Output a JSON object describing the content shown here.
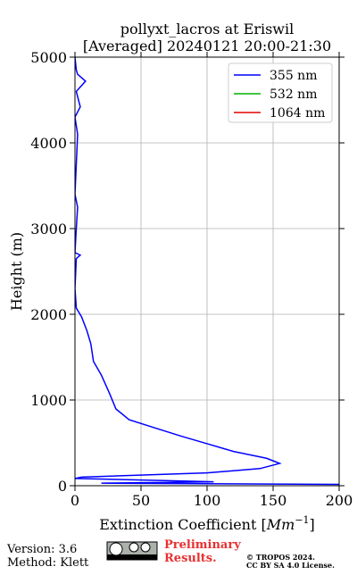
{
  "chart_data": {
    "type": "profile",
    "title": [
      "pollyxt_lacros at Eriswil",
      "[Averaged] 20240121 20:00-21:30"
    ],
    "xlabel": [
      "Extinction Coefficient [",
      "Mm",
      "−1",
      "]"
    ],
    "ylabel": "Height (m)",
    "y": [
      15,
      30,
      45,
      60,
      85,
      100,
      150,
      200,
      260,
      320,
      400,
      490,
      580,
      667,
      770,
      896,
      1083,
      1290,
      1450,
      1656,
      1810,
      1970,
      2073,
      2300,
      2650,
      2690,
      2720,
      3000,
      3250,
      3400,
      4100,
      4300,
      4420,
      4600,
      4720,
      4800,
      4850,
      5000
    ],
    "series": [
      {
        "name": "355 nm",
        "color": "#0000ff",
        "values": [
          200,
          20,
          105,
          68,
          0,
          5,
          100,
          140,
          155,
          145,
          120,
          100,
          80,
          62,
          41,
          31,
          26,
          20,
          14,
          12,
          9,
          5,
          1,
          0,
          1,
          4,
          0,
          1,
          2,
          0,
          2,
          0,
          4,
          1,
          8,
          2,
          1,
          0
        ]
      },
      {
        "name": "532 nm",
        "color": "#00b400",
        "values": [
          null,
          null,
          null,
          null,
          null,
          null,
          null,
          null,
          null,
          null,
          null,
          null,
          null,
          null,
          null,
          null,
          null,
          null,
          null,
          null,
          null,
          null,
          null,
          null,
          null,
          null,
          null,
          null,
          null,
          null,
          null,
          null,
          null,
          null,
          null,
          null,
          null,
          null
        ]
      },
      {
        "name": "1064 nm",
        "color": "#e00000",
        "values": [
          null,
          null,
          null,
          null,
          null,
          null,
          null,
          null,
          null,
          null,
          null,
          null,
          null,
          null,
          null,
          null,
          null,
          null,
          null,
          null,
          null,
          null,
          null,
          null,
          null,
          null,
          null,
          null,
          null,
          null,
          null,
          null,
          null,
          null,
          null,
          null,
          null,
          null
        ]
      }
    ],
    "xlim": [
      0,
      200
    ],
    "xticks": [
      0,
      50,
      100,
      150,
      200
    ],
    "ylim": [
      0,
      5000
    ],
    "yticks": [
      0,
      1000,
      2000,
      3000,
      4000,
      5000
    ],
    "grid": true,
    "legend": "upper right"
  },
  "footer": {
    "version": "Version: 3.6",
    "method": "Method: Klett",
    "notice": [
      "Preliminary",
      "Results."
    ],
    "copyright": [
      "© TROPOS 2024.",
      "CC BY SA 4.0 License."
    ]
  }
}
